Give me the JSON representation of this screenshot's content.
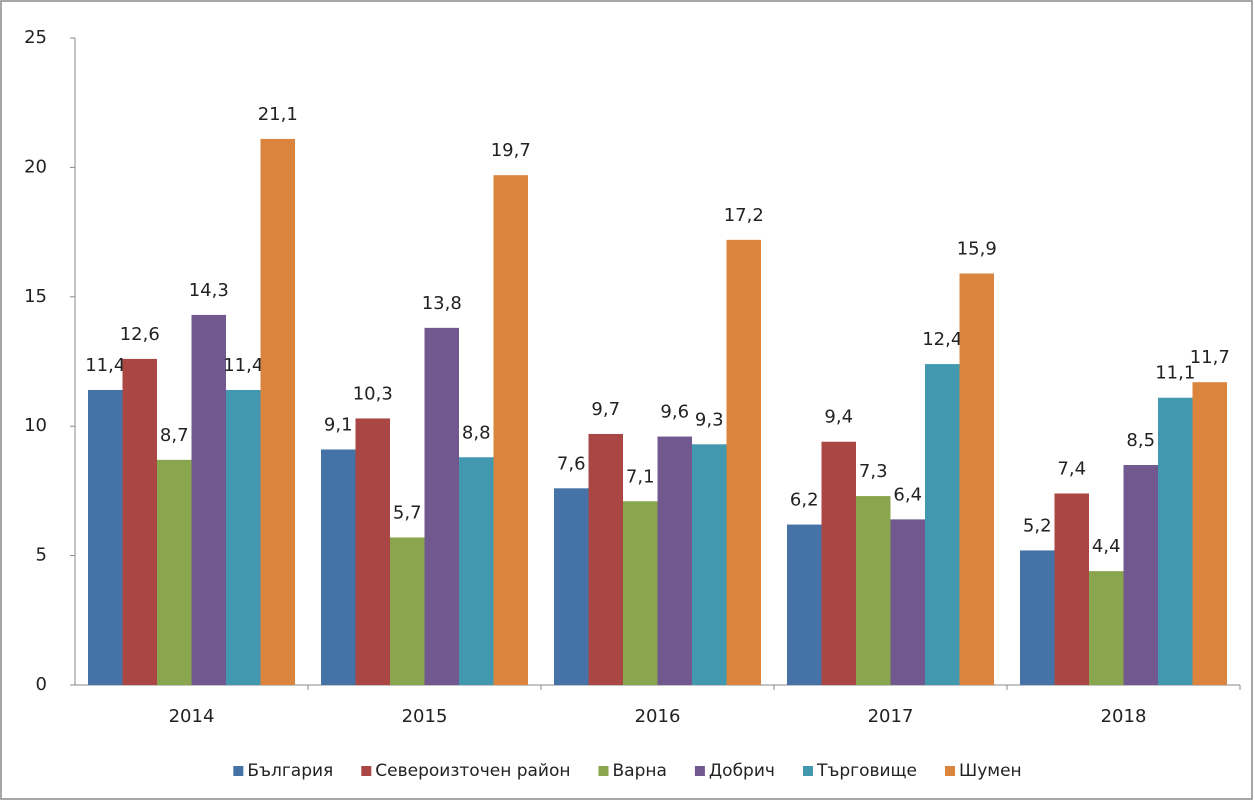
{
  "chart_data": {
    "type": "bar",
    "categories": [
      "2014",
      "2015",
      "2016",
      "2017",
      "2018"
    ],
    "series": [
      {
        "name": "България",
        "color": "#4572a7",
        "values": [
          11.4,
          9.1,
          7.6,
          6.2,
          5.2
        ],
        "value_labels": [
          "11,4",
          "9,1",
          "7,6",
          "6,2",
          "5,2"
        ]
      },
      {
        "name": "Североизточен район",
        "color": "#aa4643",
        "values": [
          12.6,
          10.3,
          9.7,
          9.4,
          7.4
        ],
        "value_labels": [
          "12,6",
          "10,3",
          "9,7",
          "9,4",
          "7,4"
        ]
      },
      {
        "name": "Варна",
        "color": "#89a54e",
        "values": [
          8.7,
          5.7,
          7.1,
          7.3,
          4.4
        ],
        "value_labels": [
          "8,7",
          "5,7",
          "7,1",
          "7,3",
          "4,4"
        ]
      },
      {
        "name": "Добрич",
        "color": "#71588f",
        "values": [
          14.3,
          13.8,
          9.6,
          6.4,
          8.5
        ],
        "value_labels": [
          "14,3",
          "13,8",
          "9,6",
          "6,4",
          "8,5"
        ]
      },
      {
        "name": "Търговище",
        "color": "#4198af",
        "values": [
          11.4,
          8.8,
          9.3,
          12.4,
          11.1
        ],
        "value_labels": [
          "11,4",
          "8,8",
          "9,3",
          "12,4",
          "11,1"
        ]
      },
      {
        "name": "Шумен",
        "color": "#db843d",
        "values": [
          21.1,
          19.7,
          17.2,
          15.9,
          11.7
        ],
        "value_labels": [
          "21,1",
          "19,7",
          "17,2",
          "15,9",
          "11,7"
        ]
      }
    ],
    "ylim": [
      0,
      25
    ],
    "yticks": [
      0,
      5,
      10,
      15,
      20,
      25
    ],
    "grid": false,
    "legend": "bottom"
  }
}
